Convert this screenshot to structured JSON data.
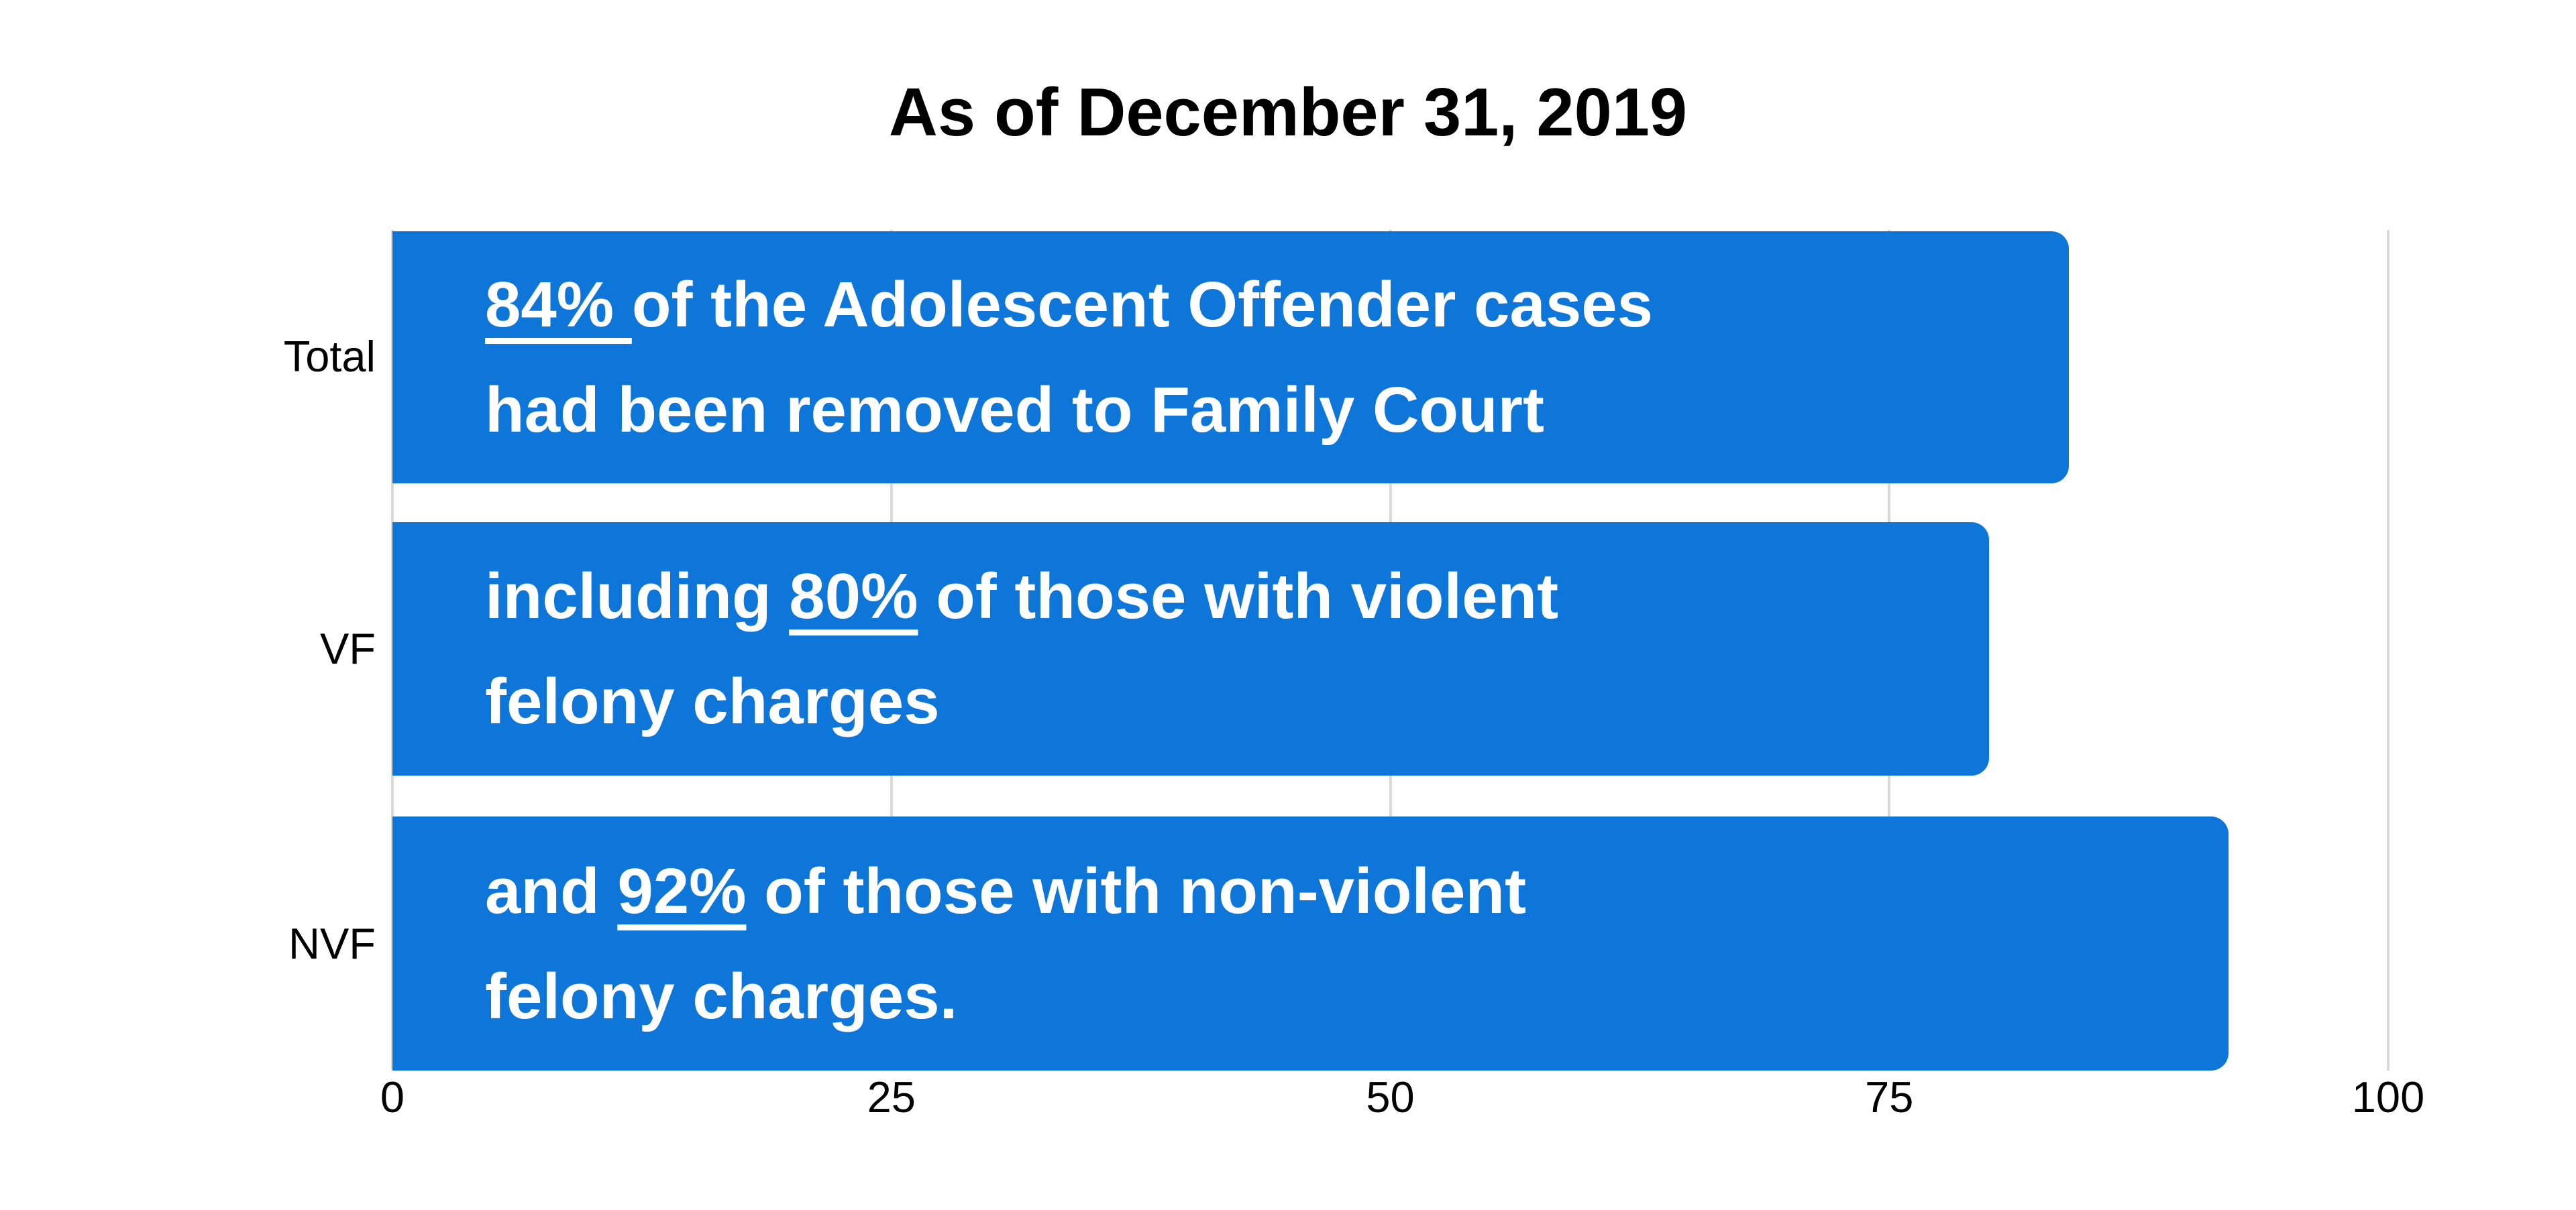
{
  "title": "As of December 31, 2019",
  "colors": {
    "bar": "#0d76d8",
    "bar_text": "#ffffff",
    "gridline": "#d9d9d9",
    "axis_text": "#000000",
    "background": "#ffffff"
  },
  "chart_data": {
    "type": "bar",
    "orientation": "horizontal",
    "title": "As of December 31, 2019",
    "categories": [
      "Total",
      "VF",
      "NVF"
    ],
    "values": [
      84,
      80,
      92
    ],
    "xlabel": "",
    "ylabel": "",
    "xlim": [
      0,
      100
    ],
    "x_ticks": [
      "0",
      "25",
      "50",
      "75",
      "100"
    ],
    "grid": "vertical-gridlines-on",
    "legend": "none",
    "bars": [
      {
        "category": "Total",
        "value": 84,
        "label_line1": {
          "pre": "",
          "underlined": "84% ",
          "post": "of the Adolescent Offender cases"
        },
        "label_line2": "had been removed to Family Court"
      },
      {
        "category": "VF",
        "value": 80,
        "label_line1": {
          "pre": "including ",
          "underlined": "80%",
          "post": " of those with violent"
        },
        "label_line2": "felony charges"
      },
      {
        "category": "NVF",
        "value": 92,
        "label_line1": {
          "pre": "and ",
          "underlined": "92%",
          "post": " of those with non-violent"
        },
        "label_line2": "felony charges."
      }
    ]
  }
}
